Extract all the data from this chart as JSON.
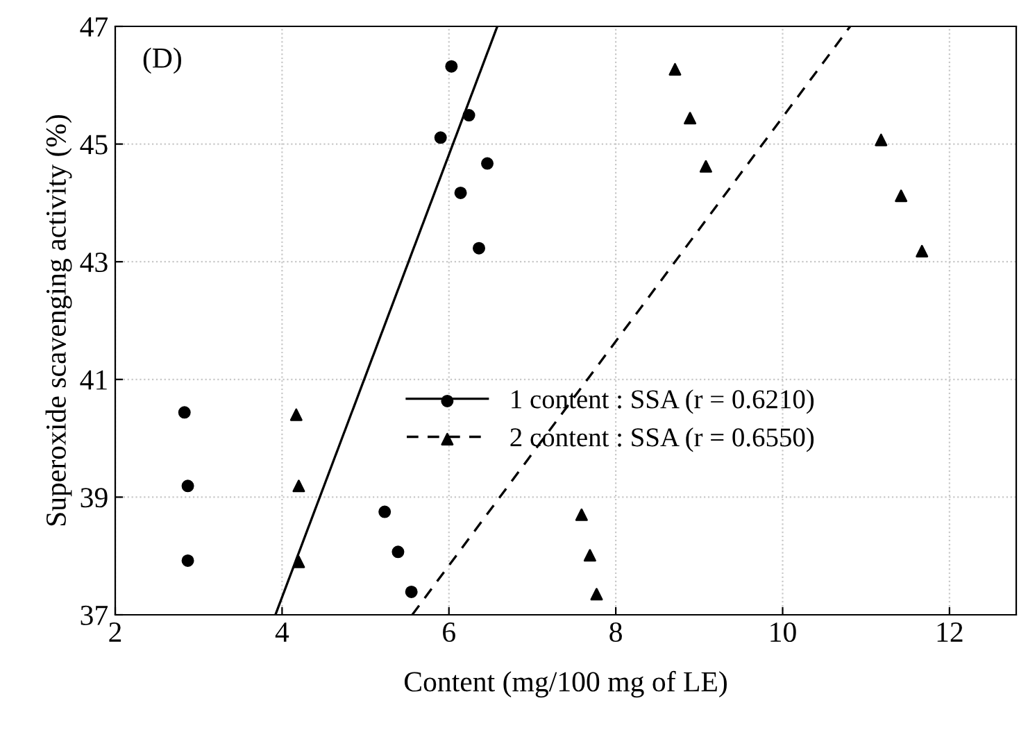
{
  "chart_data": {
    "type": "scatter",
    "xlabel": "Content (mg/100 mg of LE)",
    "ylabel": "Superoxide scavenging activity (%)",
    "annotations": [
      "(D)"
    ],
    "xlim": [
      2,
      12.8
    ],
    "xticks": [
      2,
      4,
      6,
      8,
      10,
      12
    ],
    "ylim": [
      37,
      47
    ],
    "yticks": [
      37,
      39,
      41,
      43,
      45,
      47
    ],
    "grid": true,
    "legend": "center",
    "series": [
      {
        "name": "1 content : SSA (r = 0.6210)",
        "color": "#000000",
        "marker": "circle",
        "x": [
          2.83,
          2.87,
          2.87,
          6.03,
          6.24,
          5.9,
          6.46,
          6.14,
          6.36,
          5.23,
          5.39,
          5.55
        ],
        "values": [
          40.44,
          39.19,
          37.92,
          46.32,
          45.49,
          45.11,
          44.67,
          44.17,
          43.23,
          38.75,
          38.07,
          37.39
        ]
      },
      {
        "type": "line",
        "color": "#000000",
        "line_style": "solid",
        "x": [
          3.92,
          6.58
        ],
        "values": [
          37,
          47
        ]
      },
      {
        "name": "2 content : SSA (r = 0.6550)",
        "color": "#000000",
        "marker": "triangle",
        "x": [
          4.17,
          4.2,
          4.2,
          7.59,
          7.69,
          7.77,
          8.71,
          8.89,
          9.08,
          11.18,
          11.42,
          11.67
        ],
        "values": [
          40.4,
          39.19,
          37.9,
          38.7,
          38.01,
          37.35,
          46.27,
          45.44,
          44.62,
          45.07,
          44.12,
          43.18
        ]
      },
      {
        "type": "line",
        "color": "#000000",
        "line_style": "dashed",
        "x": [
          5.56,
          10.81
        ],
        "values": [
          37,
          47
        ]
      }
    ]
  }
}
